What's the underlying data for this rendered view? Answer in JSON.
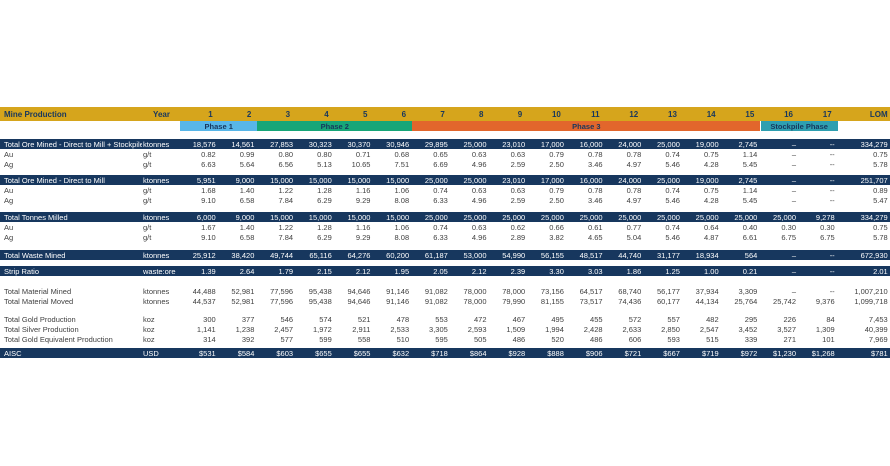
{
  "palette": {
    "header_bg": "#D6A51C",
    "navy": "#17375E",
    "phase1_blue": "#58B6E8",
    "phase2_green": "#17A678",
    "phase3_orange": "#E2662C",
    "stockpile_teal": "#2E9FB0",
    "body_text": "#3F3F3F"
  },
  "header": {
    "title": "Mine Production",
    "year_label": "Year",
    "years": [
      "1",
      "2",
      "3",
      "4",
      "5",
      "6",
      "7",
      "8",
      "9",
      "10",
      "11",
      "12",
      "13",
      "14",
      "15",
      "16",
      "17"
    ],
    "lom_label": "LOM"
  },
  "phases": [
    {
      "label": "Phase 1",
      "start": 1,
      "end": 2,
      "color_key": "phase1_blue"
    },
    {
      "label": "Phase 2",
      "start": 3,
      "end": 6,
      "color_key": "phase2_green"
    },
    {
      "label": "Phase 3",
      "start": 7,
      "end": 15,
      "color_key": "phase3_orange"
    },
    {
      "label": "Stockpile Phase",
      "start": 16,
      "end": 17,
      "color_key": "stockpile_teal"
    }
  ],
  "table": {
    "rows": [
      {
        "label": "Total Ore Mined - Direct to Mill + Stockpiled",
        "unit": "ktonnes",
        "style": "navy",
        "gap": 8,
        "values": [
          "18,576",
          "14,561",
          "27,853",
          "30,323",
          "30,370",
          "30,946",
          "29,895",
          "25,000",
          "23,010",
          "17,000",
          "16,000",
          "24,000",
          "25,000",
          "19,000",
          "2,745",
          "–",
          "--"
        ],
        "lom": "334,279"
      },
      {
        "label": "Au",
        "unit": "g/t",
        "style": "plain",
        "gap": 0,
        "values": [
          "0.82",
          "0.99",
          "0.80",
          "0.80",
          "0.71",
          "0.68",
          "0.65",
          "0.63",
          "0.63",
          "0.79",
          "0.78",
          "0.78",
          "0.74",
          "0.75",
          "1.14",
          "–",
          "--"
        ],
        "lom": "0.75"
      },
      {
        "label": "Ag",
        "unit": "g/t",
        "style": "plain",
        "gap": 0,
        "values": [
          "6.63",
          "5.64",
          "6.56",
          "5.13",
          "10.65",
          "7.51",
          "6.69",
          "4.96",
          "2.59",
          "2.50",
          "3.46",
          "4.97",
          "5.46",
          "4.28",
          "5.45",
          "–",
          "--"
        ],
        "lom": "5.78"
      },
      {
        "label": "Total Ore Mined - Direct to Mill",
        "unit": "ktonnes",
        "style": "navy",
        "gap": 6,
        "values": [
          "5,951",
          "9,000",
          "15,000",
          "15,000",
          "15,000",
          "15,000",
          "25,000",
          "25,000",
          "23,010",
          "17,000",
          "16,000",
          "24,000",
          "25,000",
          "19,000",
          "2,745",
          "–",
          "--"
        ],
        "lom": "251,707"
      },
      {
        "label": "Au",
        "unit": "g/t",
        "style": "plain",
        "gap": 0,
        "values": [
          "1.68",
          "1.40",
          "1.22",
          "1.28",
          "1.16",
          "1.06",
          "0.74",
          "0.63",
          "0.63",
          "0.79",
          "0.78",
          "0.78",
          "0.74",
          "0.75",
          "1.14",
          "–",
          "--"
        ],
        "lom": "0.89"
      },
      {
        "label": "Ag",
        "unit": "g/t",
        "style": "plain",
        "gap": 0,
        "values": [
          "9.10",
          "6.58",
          "7.84",
          "6.29",
          "9.29",
          "8.08",
          "6.33",
          "4.96",
          "2.59",
          "2.50",
          "3.46",
          "4.97",
          "5.46",
          "4.28",
          "5.45",
          "–",
          "--"
        ],
        "lom": "5.47"
      },
      {
        "label": "Total Tonnes Milled",
        "unit": "ktonnes",
        "style": "navy",
        "gap": 7,
        "values": [
          "6,000",
          "9,000",
          "15,000",
          "15,000",
          "15,000",
          "15,000",
          "25,000",
          "25,000",
          "25,000",
          "25,000",
          "25,000",
          "25,000",
          "25,000",
          "25,000",
          "25,000",
          "25,000",
          "9,278"
        ],
        "lom": "334,279"
      },
      {
        "label": "Au",
        "unit": "g/t",
        "style": "plain",
        "gap": 0,
        "values": [
          "1.67",
          "1.40",
          "1.22",
          "1.28",
          "1.16",
          "1.06",
          "0.74",
          "0.63",
          "0.62",
          "0.66",
          "0.61",
          "0.77",
          "0.74",
          "0.64",
          "0.40",
          "0.30",
          "0.30"
        ],
        "lom": "0.75"
      },
      {
        "label": "Ag",
        "unit": "g/t",
        "style": "plain",
        "gap": 0,
        "values": [
          "9.10",
          "6.58",
          "7.84",
          "6.29",
          "9.29",
          "8.08",
          "6.33",
          "4.96",
          "2.89",
          "3.82",
          "4.65",
          "5.04",
          "5.46",
          "4.87",
          "6.61",
          "6.75",
          "6.75"
        ],
        "lom": "5.78"
      },
      {
        "label": "Total Waste Mined",
        "unit": "ktonnes",
        "style": "navy",
        "gap": 8,
        "values": [
          "25,912",
          "38,420",
          "49,744",
          "65,116",
          "64,276",
          "60,200",
          "61,187",
          "53,000",
          "54,990",
          "56,155",
          "48,517",
          "44,740",
          "31,177",
          "18,934",
          "564",
          "–",
          "--"
        ],
        "lom": "672,930"
      },
      {
        "label": "Strip Ratio",
        "unit": "waste:ore",
        "style": "navy",
        "gap": 6,
        "values": [
          "1.39",
          "2.64",
          "1.79",
          "2.15",
          "2.12",
          "1.95",
          "2.05",
          "2.12",
          "2.39",
          "3.30",
          "3.03",
          "1.86",
          "1.25",
          "1.00",
          "0.21",
          "–",
          "--"
        ],
        "lom": "2.01"
      },
      {
        "label": "Total Material Mined",
        "unit": "ktonnes",
        "style": "plain",
        "gap": 10,
        "values": [
          "44,488",
          "52,981",
          "77,596",
          "95,438",
          "94,646",
          "91,146",
          "91,082",
          "78,000",
          "78,000",
          "73,156",
          "64,517",
          "68,740",
          "56,177",
          "37,934",
          "3,309",
          "–",
          "--"
        ],
        "lom": "1,007,210"
      },
      {
        "label": "Total Material Moved",
        "unit": "ktonnes",
        "style": "plain",
        "gap": 0,
        "values": [
          "44,537",
          "52,981",
          "77,596",
          "95,438",
          "94,646",
          "91,146",
          "91,082",
          "78,000",
          "79,990",
          "81,155",
          "73,517",
          "74,436",
          "60,177",
          "44,134",
          "25,764",
          "25,742",
          "9,376"
        ],
        "lom": "1,099,718"
      },
      {
        "label": "Total Gold Production",
        "unit": "koz",
        "style": "plain",
        "gap": 8,
        "values": [
          "300",
          "377",
          "546",
          "574",
          "521",
          "478",
          "553",
          "472",
          "467",
          "495",
          "455",
          "572",
          "557",
          "482",
          "295",
          "226",
          "84"
        ],
        "lom": "7,453"
      },
      {
        "label": "Total Silver Production",
        "unit": "koz",
        "style": "plain",
        "gap": 0,
        "values": [
          "1,141",
          "1,238",
          "2,457",
          "1,972",
          "2,911",
          "2,533",
          "3,305",
          "2,593",
          "1,509",
          "1,994",
          "2,428",
          "2,633",
          "2,850",
          "2,547",
          "3,452",
          "3,527",
          "1,309"
        ],
        "lom": "40,399"
      },
      {
        "label": "Total Gold Equivalent Production",
        "unit": "koz",
        "style": "plain",
        "gap": 0,
        "values": [
          "314",
          "392",
          "577",
          "599",
          "558",
          "510",
          "595",
          "505",
          "486",
          "520",
          "486",
          "606",
          "593",
          "515",
          "339",
          "271",
          "101"
        ],
        "lom": "7,969"
      },
      {
        "label": "AISC",
        "unit": "USD",
        "style": "navy",
        "gap": 4,
        "values": [
          "$531",
          "$584",
          "$603",
          "$655",
          "$655",
          "$632",
          "$718",
          "$864",
          "$928",
          "$888",
          "$906",
          "$721",
          "$667",
          "$719",
          "$972",
          "$1,230",
          "$1,268"
        ],
        "lom": "$781"
      }
    ]
  }
}
